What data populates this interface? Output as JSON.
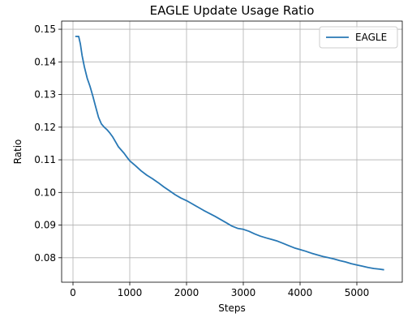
{
  "chart_data": {
    "type": "line",
    "title": "EAGLE Update Usage Ratio",
    "xlabel": "Steps",
    "ylabel": "Ratio",
    "xlim": [
      -200,
      5800
    ],
    "ylim": [
      0.0725,
      0.1525
    ],
    "xticks": [
      0,
      1000,
      2000,
      3000,
      4000,
      5000
    ],
    "yticks": [
      0.08,
      0.09,
      0.1,
      0.11,
      0.12,
      0.13,
      0.14,
      0.15
    ],
    "xtick_labels": [
      "0",
      "1000",
      "2000",
      "3000",
      "4000",
      "5000"
    ],
    "ytick_labels": [
      "0.08",
      "0.09",
      "0.10",
      "0.11",
      "0.12",
      "0.13",
      "0.14",
      "0.15"
    ],
    "grid": true,
    "legend_position": "top-right",
    "series": [
      {
        "name": "EAGLE",
        "color": "#2878b5",
        "x": [
          40,
          100,
          130,
          160,
          200,
          250,
          300,
          350,
          400,
          450,
          500,
          550,
          600,
          650,
          700,
          750,
          800,
          850,
          900,
          950,
          1000,
          1100,
          1200,
          1300,
          1400,
          1500,
          1600,
          1700,
          1800,
          1900,
          2000,
          2100,
          2200,
          2300,
          2400,
          2500,
          2600,
          2700,
          2800,
          2900,
          3000,
          3100,
          3200,
          3300,
          3400,
          3500,
          3600,
          3700,
          3800,
          3900,
          4000,
          4100,
          4200,
          4300,
          4400,
          4500,
          4600,
          4700,
          4800,
          4900,
          5000,
          5100,
          5200,
          5300,
          5400,
          5480
        ],
        "y": [
          0.1478,
          0.1478,
          0.1455,
          0.142,
          0.1385,
          0.135,
          0.1325,
          0.1295,
          0.1262,
          0.123,
          0.121,
          0.12,
          0.1192,
          0.1182,
          0.117,
          0.1155,
          0.114,
          0.113,
          0.112,
          0.1108,
          0.1097,
          0.1082,
          0.1066,
          0.1053,
          0.1042,
          0.103,
          0.1017,
          0.1005,
          0.0993,
          0.0983,
          0.0975,
          0.0965,
          0.0955,
          0.0945,
          0.0936,
          0.0927,
          0.0917,
          0.0907,
          0.0897,
          0.089,
          0.0887,
          0.0881,
          0.0873,
          0.0866,
          0.0861,
          0.0856,
          0.0851,
          0.0844,
          0.0837,
          0.083,
          0.0825,
          0.082,
          0.0814,
          0.0809,
          0.0804,
          0.08,
          0.0796,
          0.0791,
          0.0787,
          0.0782,
          0.0778,
          0.0774,
          0.077,
          0.0767,
          0.0765,
          0.0763
        ]
      }
    ]
  }
}
